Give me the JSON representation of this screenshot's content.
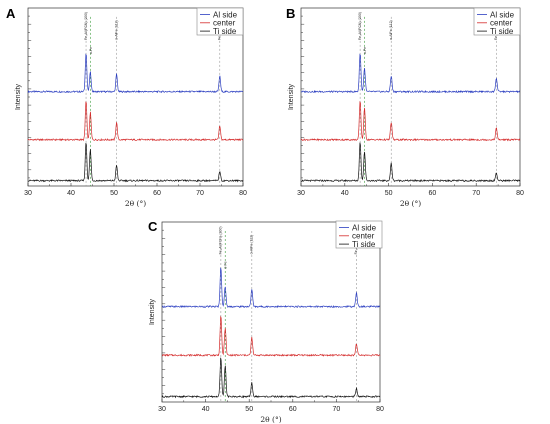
{
  "chart_data": [
    {
      "panel": "A",
      "type": "line",
      "xlabel": "2θ (°)",
      "ylabel": "Intensity",
      "xlim": [
        30,
        80
      ],
      "xticks": [
        30,
        40,
        50,
        60,
        70,
        80
      ],
      "grid": false,
      "legend_placement": "top-right",
      "peak_labels": [
        "Fe₃Al(FCN) (200)",
        "α-Fe",
        "α-AlFe (112)",
        "Fe₃AlCN (112)"
      ],
      "peaks": [
        43.5,
        44.5,
        50.6,
        74.6
      ],
      "series": [
        {
          "name": "Al side",
          "color": "#2a3dc0",
          "baseline": 0.0,
          "peak_heights": [
            1.0,
            0.5,
            0.45,
            0.4
          ]
        },
        {
          "name": "center",
          "color": "#d42a2a",
          "baseline": 0.0,
          "peak_heights": [
            1.0,
            0.7,
            0.45,
            0.35
          ]
        },
        {
          "name": "Ti side",
          "color": "#111111",
          "baseline": 0.0,
          "peak_heights": [
            1.0,
            0.8,
            0.4,
            0.25
          ]
        }
      ]
    },
    {
      "panel": "B",
      "type": "line",
      "xlabel": "2θ (°)",
      "ylabel": "Intensity",
      "xlim": [
        30,
        80
      ],
      "xticks": [
        30,
        40,
        50,
        60,
        70,
        80
      ],
      "grid": false,
      "legend_placement": "top-right",
      "peak_labels": [
        "Fe₃Al(FCN) (200)",
        "α-Fe",
        "α-AlFe (112)",
        "Fe₃AlCN (112)"
      ],
      "peaks": [
        43.5,
        44.5,
        50.6,
        74.6
      ],
      "series": [
        {
          "name": "Al side",
          "color": "#2a3dc0",
          "baseline": 0.0,
          "peak_heights": [
            1.0,
            0.6,
            0.4,
            0.35
          ]
        },
        {
          "name": "center",
          "color": "#d42a2a",
          "baseline": 0.0,
          "peak_heights": [
            1.0,
            0.8,
            0.45,
            0.3
          ]
        },
        {
          "name": "Ti side",
          "color": "#111111",
          "baseline": 0.0,
          "peak_heights": [
            1.0,
            0.75,
            0.45,
            0.2
          ]
        }
      ]
    },
    {
      "panel": "C",
      "type": "line",
      "xlabel": "2θ (°)",
      "ylabel": "Intensity",
      "xlim": [
        30,
        80
      ],
      "xticks": [
        30,
        40,
        50,
        60,
        70,
        80
      ],
      "grid": false,
      "legend_placement": "top-right",
      "peak_labels": [
        "Fe₃Al(FCN) (200)",
        "α-Fe",
        "α-AlFe (112)",
        "Fe₃AlCN (112)"
      ],
      "peaks": [
        43.5,
        44.5,
        50.6,
        74.6
      ],
      "series": [
        {
          "name": "Al side",
          "color": "#2a3dc0",
          "baseline": 0.0,
          "peak_heights": [
            1.0,
            0.5,
            0.45,
            0.35
          ]
        },
        {
          "name": "center",
          "color": "#d42a2a",
          "baseline": 0.0,
          "peak_heights": [
            1.0,
            0.7,
            0.45,
            0.3
          ]
        },
        {
          "name": "Ti side",
          "color": "#111111",
          "baseline": 0.0,
          "peak_heights": [
            1.0,
            0.8,
            0.35,
            0.2
          ]
        }
      ]
    }
  ]
}
